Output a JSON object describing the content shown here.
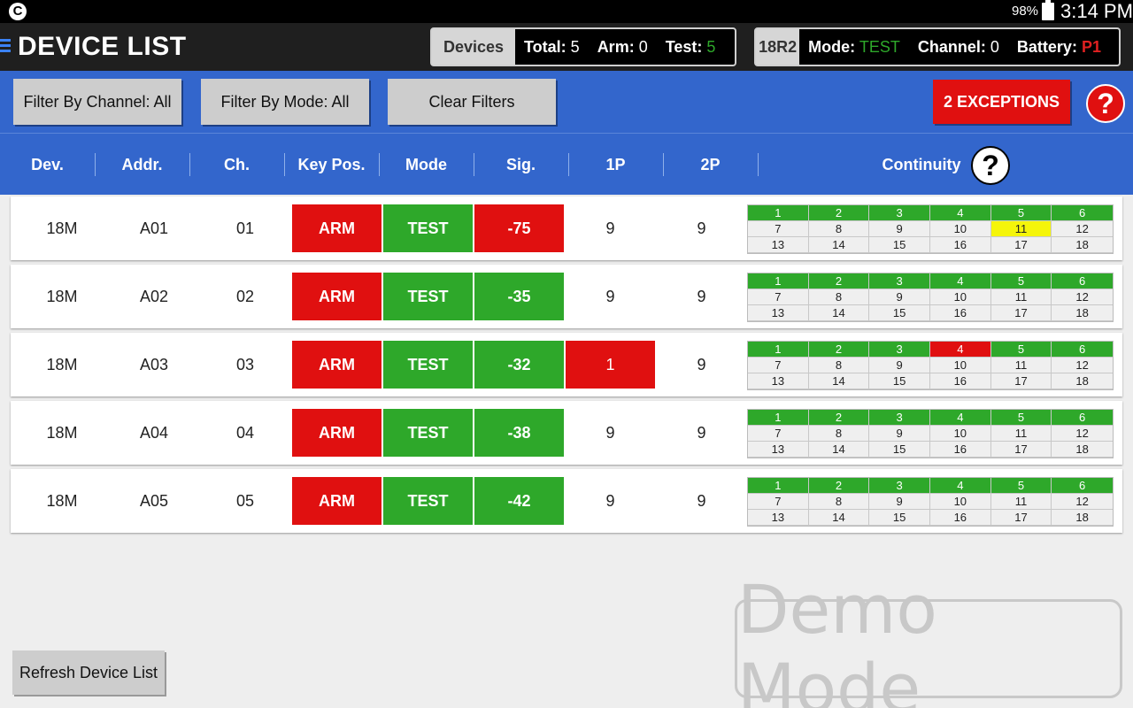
{
  "status_bar": {
    "app_icon": "C",
    "battery_pct": "98%",
    "time": "3:14 PM"
  },
  "header": {
    "title": "DEVICE LIST",
    "devices_label": "Devices",
    "total_label": "Total:",
    "total_value": "5",
    "arm_label": "Arm:",
    "arm_value": "0",
    "test_label": "Test:",
    "test_value": "5",
    "unit_label": "18R2",
    "mode_label": "Mode:",
    "mode_value": "TEST",
    "channel_label": "Channel:",
    "channel_value": "0",
    "battery_label": "Battery:",
    "battery_value": "P1"
  },
  "filters": {
    "channel_label": "Filter By Channel: All",
    "mode_label": "Filter By Mode: All",
    "clear_label": "Clear Filters",
    "exceptions_label": "2 EXCEPTIONS",
    "help": "?"
  },
  "columns": {
    "dev": "Dev.",
    "addr": "Addr.",
    "ch": "Ch.",
    "keypos": "Key Pos.",
    "mode": "Mode",
    "sig": "Sig.",
    "p1": "1P",
    "p2": "2P",
    "continuity": "Continuity",
    "help": "?"
  },
  "rows": [
    {
      "dev": "18M",
      "addr": "A01",
      "ch": "01",
      "keypos": "ARM",
      "mode": "TEST",
      "sig": "-75",
      "p1": "9",
      "p2": "9",
      "cont": [
        "1",
        "2",
        "3",
        "4",
        "5",
        "6",
        "7",
        "8",
        "9",
        "10",
        "11",
        "12",
        "13",
        "14",
        "15",
        "16",
        "17",
        "18"
      ]
    },
    {
      "dev": "18M",
      "addr": "A02",
      "ch": "02",
      "keypos": "ARM",
      "mode": "TEST",
      "sig": "-35",
      "p1": "9",
      "p2": "9",
      "cont": [
        "1",
        "2",
        "3",
        "4",
        "5",
        "6",
        "7",
        "8",
        "9",
        "10",
        "11",
        "12",
        "13",
        "14",
        "15",
        "16",
        "17",
        "18"
      ]
    },
    {
      "dev": "18M",
      "addr": "A03",
      "ch": "03",
      "keypos": "ARM",
      "mode": "TEST",
      "sig": "-32",
      "p1": "1",
      "p2": "9",
      "cont": [
        "1",
        "2",
        "3",
        "4",
        "5",
        "6",
        "7",
        "8",
        "9",
        "10",
        "11",
        "12",
        "13",
        "14",
        "15",
        "16",
        "17",
        "18"
      ]
    },
    {
      "dev": "18M",
      "addr": "A04",
      "ch": "04",
      "keypos": "ARM",
      "mode": "TEST",
      "sig": "-38",
      "p1": "9",
      "p2": "9",
      "cont": [
        "1",
        "2",
        "3",
        "4",
        "5",
        "6",
        "7",
        "8",
        "9",
        "10",
        "11",
        "12",
        "13",
        "14",
        "15",
        "16",
        "17",
        "18"
      ]
    },
    {
      "dev": "18M",
      "addr": "A05",
      "ch": "05",
      "keypos": "ARM",
      "mode": "TEST",
      "sig": "-42",
      "p1": "9",
      "p2": "9",
      "cont": [
        "1",
        "2",
        "3",
        "4",
        "5",
        "6",
        "7",
        "8",
        "9",
        "10",
        "11",
        "12",
        "13",
        "14",
        "15",
        "16",
        "17",
        "18"
      ]
    }
  ],
  "refresh_label": "Refresh Device List",
  "demo_label": "Demo Mode"
}
